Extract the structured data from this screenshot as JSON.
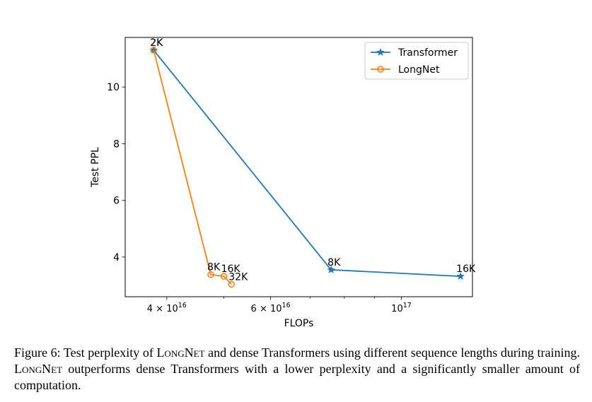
{
  "chart_data": {
    "type": "line",
    "xlabel": "FLOPs",
    "ylabel": "Test PPL",
    "xscale": "log",
    "xlim": [
      3.4e+16,
      1.32e+17
    ],
    "ylim": [
      2.6,
      11.75
    ],
    "xticks": [
      {
        "value": 4e+16,
        "mantissa": "4",
        "base": "10",
        "exp": "16"
      },
      {
        "value": 6e+16,
        "mantissa": "6",
        "base": "10",
        "exp": "16"
      },
      {
        "value": 1e+17,
        "mantissa": "",
        "base": "10",
        "exp": "17"
      }
    ],
    "yticks": [
      4,
      6,
      8,
      10
    ],
    "legend_position": "top-right",
    "series": [
      {
        "name": "Transformer",
        "color": "#1f77b4",
        "marker": "star",
        "x": [
          3.8e+16,
          7.6e+16,
          1.26e+17
        ],
        "y": [
          11.3,
          3.55,
          3.32
        ],
        "labels": [
          "2K",
          "8K",
          "16K"
        ]
      },
      {
        "name": "LongNet",
        "color": "#ff7f0e",
        "marker": "circle-open",
        "x": [
          3.8e+16,
          4.75e+16,
          5e+16,
          5.15e+16
        ],
        "y": [
          11.3,
          3.38,
          3.32,
          3.04
        ],
        "labels": [
          "2K",
          "8K",
          "16K",
          "32K"
        ]
      }
    ]
  },
  "caption": {
    "figure_label": "Figure 6:",
    "part1": "Test perplexity of",
    "name1": "LongNet",
    "part2": "and dense Transformers using different sequence lengths during training.",
    "name2": "LongNet",
    "part3": "outperforms dense Transformers with a lower perplexity and a significantly smaller amount of computation."
  }
}
